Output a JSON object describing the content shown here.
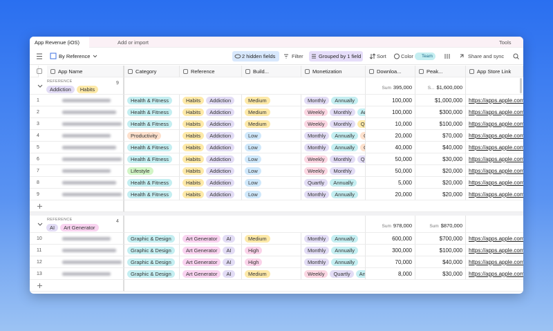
{
  "tab": {
    "title": "App Revenue (iOS)",
    "add": "Add or import",
    "tools": "Tools"
  },
  "toolbar": {
    "view": "By Reference",
    "hidden": "2 hidden fields",
    "filter": "Filter",
    "group": "Grouped by 1 field",
    "sort": "Sort",
    "color": "Color",
    "team": "Team",
    "share": "Share and sync"
  },
  "columns": [
    "App Name",
    "Category",
    "Reference",
    "Build...",
    "Monetization",
    "Downloa...",
    "Peak...",
    "App Store Link"
  ],
  "groups": [
    {
      "label": "REFERENCE",
      "tags": [
        {
          "t": "Addiction",
          "c": "#e2dcf5"
        },
        {
          "t": "Habits",
          "c": "#fde9a8"
        }
      ],
      "count": "9",
      "sums": [
        {
          "label": "Sum",
          "value": "395,000"
        },
        {
          "label": "S...",
          "value": "$1,600,000"
        }
      ],
      "rows": [
        {
          "num": "1",
          "category": {
            "t": "Health & Fitness",
            "c": "#c4eef1"
          },
          "reference": [
            {
              "t": "Habits",
              "c": "#fde9a8"
            },
            {
              "t": "Addiction",
              "c": "#e2dcf5"
            }
          ],
          "build": {
            "t": "Medium",
            "c": "#fde9a8"
          },
          "monetization": [
            {
              "t": "Monthly",
              "c": "#e2dcf5"
            },
            {
              "t": "Annually",
              "c": "#c4eef1"
            }
          ],
          "downloads": "100,000",
          "peak": "$1,000,000",
          "link": "https://apps.apple.com/"
        },
        {
          "num": "2",
          "category": {
            "t": "Health & Fitness",
            "c": "#c4eef1"
          },
          "reference": [
            {
              "t": "Habits",
              "c": "#fde9a8"
            },
            {
              "t": "Addiction",
              "c": "#e2dcf5"
            }
          ],
          "build": {
            "t": "Medium",
            "c": "#fde9a8"
          },
          "monetization": [
            {
              "t": "Weekly",
              "c": "#fbd6e2"
            },
            {
              "t": "Monthly",
              "c": "#e2dcf5"
            },
            {
              "t": "Ann",
              "c": "#c4eef1"
            }
          ],
          "downloads": "100,000",
          "peak": "$300,000",
          "link": "https://apps.apple.com/"
        },
        {
          "num": "3",
          "category": {
            "t": "Health & Fitness",
            "c": "#c4eef1"
          },
          "reference": [
            {
              "t": "Habits",
              "c": "#fde9a8"
            },
            {
              "t": "Addiction",
              "c": "#e2dcf5"
            }
          ],
          "build": {
            "t": "Medium",
            "c": "#fde9a8"
          },
          "monetization": [
            {
              "t": "Weekly",
              "c": "#fbd6e2"
            },
            {
              "t": "Monthly",
              "c": "#e2dcf5"
            },
            {
              "t": "Qu",
              "c": "#fde9a8"
            }
          ],
          "downloads": "10,000",
          "peak": "$100,000",
          "link": "https://apps.apple.com/"
        },
        {
          "num": "4",
          "category": {
            "t": "Productivity",
            "c": "#fde0cc"
          },
          "reference": [
            {
              "t": "Habits",
              "c": "#fde9a8"
            },
            {
              "t": "Addiction",
              "c": "#e2dcf5"
            }
          ],
          "build": {
            "t": "Low",
            "c": "#cfe8fb"
          },
          "monetization": [
            {
              "t": "Monthly",
              "c": "#e2dcf5"
            },
            {
              "t": "Annually",
              "c": "#c4eef1"
            },
            {
              "t": "O",
              "c": "#fde0cc"
            }
          ],
          "downloads": "20,000",
          "peak": "$70,000",
          "link": "https://apps.apple.com/"
        },
        {
          "num": "5",
          "category": {
            "t": "Health & Fitness",
            "c": "#c4eef1"
          },
          "reference": [
            {
              "t": "Habits",
              "c": "#fde9a8"
            },
            {
              "t": "Addiction",
              "c": "#e2dcf5"
            }
          ],
          "build": {
            "t": "Low",
            "c": "#cfe8fb"
          },
          "monetization": [
            {
              "t": "Monthly",
              "c": "#e2dcf5"
            },
            {
              "t": "Annually",
              "c": "#c4eef1"
            },
            {
              "t": "O",
              "c": "#fde0cc"
            }
          ],
          "downloads": "40,000",
          "peak": "$40,000",
          "link": "https://apps.apple.com/"
        },
        {
          "num": "6",
          "category": {
            "t": "Health & Fitness",
            "c": "#c4eef1"
          },
          "reference": [
            {
              "t": "Habits",
              "c": "#fde9a8"
            },
            {
              "t": "Addiction",
              "c": "#e2dcf5"
            }
          ],
          "build": {
            "t": "Low",
            "c": "#cfe8fb"
          },
          "monetization": [
            {
              "t": "Weekly",
              "c": "#fbd6e2"
            },
            {
              "t": "Monthly",
              "c": "#e2dcf5"
            },
            {
              "t": "Quartly",
              "c": "#e2dcf5"
            }
          ],
          "downloads": "50,000",
          "peak": "$30,000",
          "link": "https://apps.apple.com/"
        },
        {
          "num": "7",
          "category": {
            "t": "Lifestyle",
            "c": "#d2f5c6"
          },
          "reference": [
            {
              "t": "Habits",
              "c": "#fde9a8"
            },
            {
              "t": "Addiction",
              "c": "#e2dcf5"
            }
          ],
          "build": {
            "t": "Low",
            "c": "#cfe8fb"
          },
          "monetization": [
            {
              "t": "Weekly",
              "c": "#fbd6e2"
            },
            {
              "t": "Monthly",
              "c": "#e2dcf5"
            }
          ],
          "downloads": "50,000",
          "peak": "$20,000",
          "link": "https://apps.apple.com/"
        },
        {
          "num": "8",
          "category": {
            "t": "Health & Fitness",
            "c": "#c4eef1"
          },
          "reference": [
            {
              "t": "Habits",
              "c": "#fde9a8"
            },
            {
              "t": "Addiction",
              "c": "#e2dcf5"
            }
          ],
          "build": {
            "t": "Low",
            "c": "#cfe8fb"
          },
          "monetization": [
            {
              "t": "Quartly",
              "c": "#e2dcf5"
            },
            {
              "t": "Annually",
              "c": "#c4eef1"
            }
          ],
          "downloads": "5,000",
          "peak": "$20,000",
          "link": "https://apps.apple.com/"
        },
        {
          "num": "9",
          "category": {
            "t": "Health & Fitness",
            "c": "#c4eef1"
          },
          "reference": [
            {
              "t": "Habits",
              "c": "#fde9a8"
            },
            {
              "t": "Addiction",
              "c": "#e2dcf5"
            }
          ],
          "build": {
            "t": "Low",
            "c": "#cfe8fb"
          },
          "monetization": [
            {
              "t": "Monthly",
              "c": "#e2dcf5"
            },
            {
              "t": "Annually",
              "c": "#c4eef1"
            }
          ],
          "downloads": "20,000",
          "peak": "$20,000",
          "link": "https://apps.apple.com/"
        }
      ]
    },
    {
      "label": "REFERENCE",
      "tags": [
        {
          "t": "AI",
          "c": "#e2dcf5"
        },
        {
          "t": "Art Generator",
          "c": "#f9d3f0"
        }
      ],
      "count": "4",
      "sums": [
        {
          "label": "Sum",
          "value": "978,000"
        },
        {
          "label": "Sum",
          "value": "$870,000"
        }
      ],
      "rows": [
        {
          "num": "10",
          "category": {
            "t": "Graphic & Design",
            "c": "#c4eef1"
          },
          "reference": [
            {
              "t": "Art Generator",
              "c": "#f9d3f0"
            },
            {
              "t": "AI",
              "c": "#e2dcf5"
            }
          ],
          "build": {
            "t": "Medium",
            "c": "#fde9a8"
          },
          "monetization": [
            {
              "t": "Monthly",
              "c": "#e2dcf5"
            },
            {
              "t": "Annually",
              "c": "#c4eef1"
            }
          ],
          "downloads": "600,000",
          "peak": "$700,000",
          "link": "https://apps.apple.com/"
        },
        {
          "num": "11",
          "category": {
            "t": "Graphic & Design",
            "c": "#c4eef1"
          },
          "reference": [
            {
              "t": "Art Generator",
              "c": "#f9d3f0"
            },
            {
              "t": "AI",
              "c": "#e2dcf5"
            }
          ],
          "build": {
            "t": "High",
            "c": "#fbd3ea"
          },
          "monetization": [
            {
              "t": "Monthly",
              "c": "#e2dcf5"
            },
            {
              "t": "Annually",
              "c": "#c4eef1"
            }
          ],
          "downloads": "300,000",
          "peak": "$100,000",
          "link": "https://apps.apple.com/"
        },
        {
          "num": "12",
          "category": {
            "t": "Graphic & Design",
            "c": "#c4eef1"
          },
          "reference": [
            {
              "t": "Art Generator",
              "c": "#f9d3f0"
            },
            {
              "t": "AI",
              "c": "#e2dcf5"
            }
          ],
          "build": {
            "t": "High",
            "c": "#fbd3ea"
          },
          "monetization": [
            {
              "t": "Monthly",
              "c": "#e2dcf5"
            },
            {
              "t": "Annually",
              "c": "#c4eef1"
            }
          ],
          "downloads": "70,000",
          "peak": "$40,000",
          "link": "https://apps.apple.com/"
        },
        {
          "num": "13",
          "category": {
            "t": "Graphic & Design",
            "c": "#c4eef1"
          },
          "reference": [
            {
              "t": "Art Generator",
              "c": "#f9d3f0"
            },
            {
              "t": "AI",
              "c": "#e2dcf5"
            }
          ],
          "build": {
            "t": "Medium",
            "c": "#fde9a8"
          },
          "monetization": [
            {
              "t": "Weekly",
              "c": "#fbd6e2"
            },
            {
              "t": "Quartly",
              "c": "#e2dcf5"
            },
            {
              "t": "Ann",
              "c": "#c4eef1"
            }
          ],
          "downloads": "8,000",
          "peak": "$30,000",
          "link": "https://apps.apple.com/"
        }
      ]
    }
  ]
}
